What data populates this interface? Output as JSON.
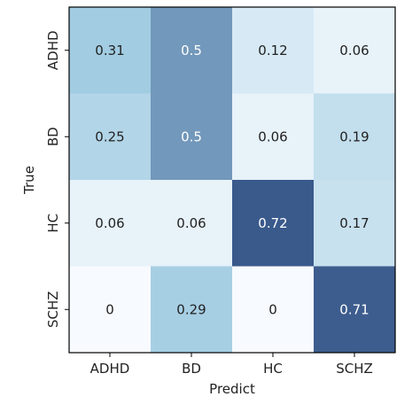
{
  "chart_data": {
    "type": "heatmap",
    "title": "",
    "xlabel": "Predict",
    "ylabel": "True",
    "x_categories": [
      "ADHD",
      "BD",
      "HC",
      "SCHZ"
    ],
    "y_categories": [
      "ADHD",
      "BD",
      "HC",
      "SCHZ"
    ],
    "values": [
      [
        0.31,
        0.5,
        0.12,
        0.06
      ],
      [
        0.25,
        0.5,
        0.06,
        0.19
      ],
      [
        0.06,
        0.06,
        0.72,
        0.17
      ],
      [
        0,
        0.29,
        0,
        0.71
      ]
    ],
    "cell_labels": [
      [
        "0.31",
        "0.5",
        "0.12",
        "0.06"
      ],
      [
        "0.25",
        "0.5",
        "0.06",
        "0.19"
      ],
      [
        "0.06",
        "0.06",
        "0.72",
        "0.17"
      ],
      [
        "0",
        "0.29",
        "0",
        "0.71"
      ]
    ],
    "colormap": "Blues",
    "vmin": 0,
    "vmax": 0.72,
    "colors": {
      "low": "#f7fbff",
      "high": "#3a5a8c",
      "text_dark": "#222222",
      "text_light": "#ffffff"
    }
  }
}
